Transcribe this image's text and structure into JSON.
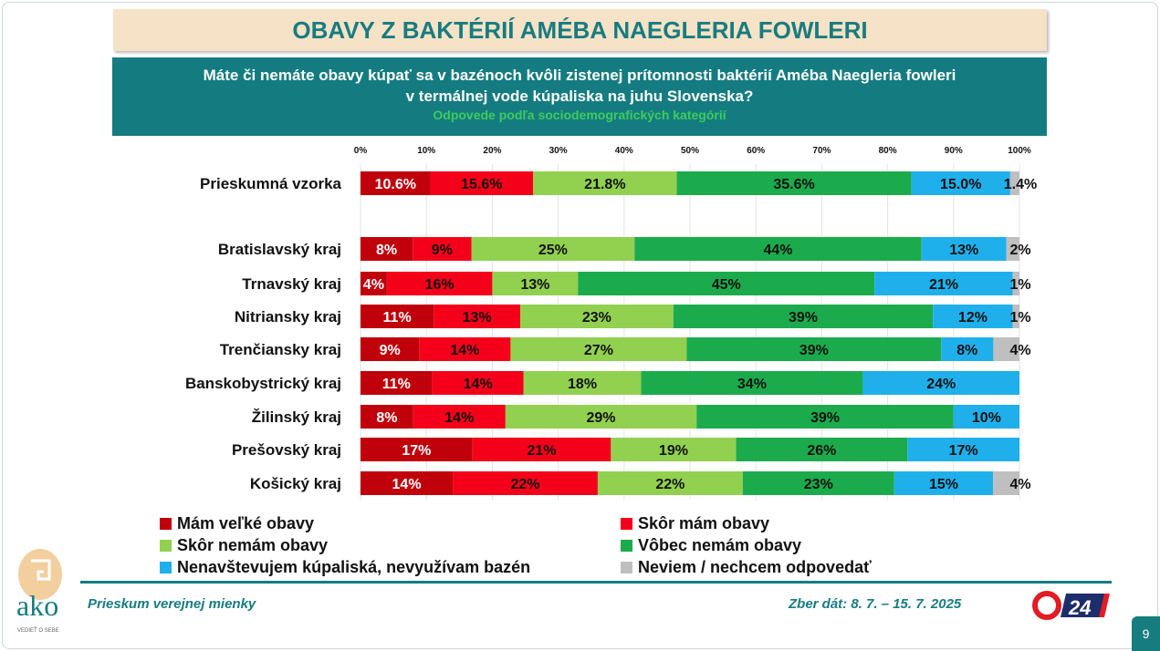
{
  "title": "OBAVY Z BAKTÉRIÍ AMÉBA NAEGLERIA FOWLERI",
  "question": {
    "line1": "Máte či nemáte obavy kúpať sa v bazénoch kvôli zistenej prítomnosti baktérií Améba Naegleria fowleri",
    "line2": "v termálnej vode kúpaliska na juhu Slovenska?",
    "subtitle": "Odpovede podľa sociodemografických kategórií"
  },
  "footer": {
    "left": "Prieskum verejnej mienky",
    "right": "Zber dát: 8. 7. – 15. 7. 2025",
    "page": "9",
    "logo_text": "ako",
    "logo_tagline": "VEDIEŤ O SEBE",
    "partner_logo": "24"
  },
  "chart_data": {
    "type": "bar",
    "orientation": "horizontal",
    "stacked": true,
    "xlim": [
      0,
      100
    ],
    "ticks": [
      "0%",
      "10%",
      "20%",
      "30%",
      "40%",
      "50%",
      "60%",
      "70%",
      "80%",
      "90%",
      "100%"
    ],
    "categories": [
      "Prieskumná vzorka",
      "Bratislavský kraj",
      "Trnavský kraj",
      "Nitriansky kraj",
      "Trenčiansky kraj",
      "Banskobystrický kraj",
      "Žilinský kraj",
      "Prešovský kraj",
      "Košický kraj"
    ],
    "series": [
      {
        "name": "Mám veľké obavy",
        "color": "#c0000b",
        "values": [
          10.6,
          8,
          4,
          11,
          9,
          11,
          8,
          17,
          14
        ],
        "labels": [
          "10.6%",
          "8%",
          "4%",
          "11%",
          "9%",
          "11%",
          "8%",
          "17%",
          "14%"
        ]
      },
      {
        "name": "Skôr mám obavy",
        "color": "#f5001a",
        "values": [
          15.6,
          9,
          16,
          13,
          14,
          14,
          14,
          21,
          22
        ],
        "labels": [
          "15.6%",
          "9%",
          "16%",
          "13%",
          "14%",
          "14%",
          "14%",
          "21%",
          "22%"
        ]
      },
      {
        "name": "Skôr nemám obavy",
        "color": "#92d050",
        "values": [
          21.8,
          25,
          13,
          23,
          27,
          18,
          29,
          19,
          22
        ],
        "labels": [
          "21.8%",
          "25%",
          "13%",
          "23%",
          "27%",
          "18%",
          "29%",
          "19%",
          "22%"
        ]
      },
      {
        "name": "Vôbec nemám obavy",
        "color": "#1cab4c",
        "values": [
          35.6,
          44,
          45,
          39,
          39,
          34,
          39,
          26,
          23
        ],
        "labels": [
          "35.6%",
          "44%",
          "45%",
          "39%",
          "39%",
          "34%",
          "39%",
          "26%",
          "23%"
        ]
      },
      {
        "name": "Nenavštevujem kúpaliská, nevyužívam bazén",
        "color": "#1fb0ec",
        "values": [
          15.0,
          13,
          21,
          12,
          8,
          24,
          10,
          17,
          15
        ],
        "labels": [
          "15.0%",
          "13%",
          "21%",
          "12%",
          "8%",
          "24%",
          "10%",
          "17%",
          "15%"
        ]
      },
      {
        "name": "Neviem / nechcem odpovedať",
        "color": "#bfbfbf",
        "values": [
          1.4,
          2,
          1,
          1,
          4,
          0,
          0,
          0,
          4
        ],
        "labels": [
          "1.4%",
          "2%",
          "1%",
          "1%",
          "4%",
          "",
          "",
          "",
          "4%"
        ]
      }
    ]
  }
}
